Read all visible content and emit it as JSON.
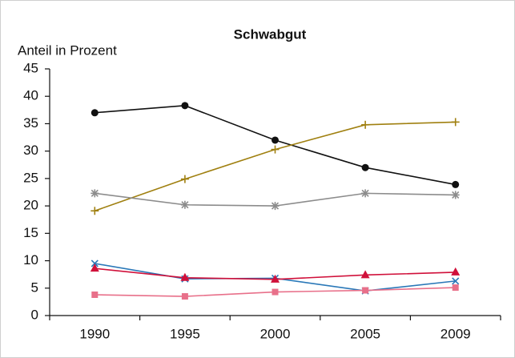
{
  "chart_data": {
    "type": "line",
    "title": "Schwabgut",
    "y_label": "Anteil in Prozent",
    "categories": [
      "1990",
      "1995",
      "2000",
      "2005",
      "2009"
    ],
    "ylim": [
      0,
      45
    ],
    "yticks": [
      0,
      5,
      10,
      15,
      20,
      25,
      30,
      35,
      40,
      45
    ],
    "grid": false,
    "series": [
      {
        "color": "#111111",
        "marker": "circle",
        "values": [
          37,
          38.3,
          32,
          27,
          23.9
        ]
      },
      {
        "color": "#a08010",
        "marker": "plus",
        "values": [
          19.1,
          24.9,
          30.3,
          34.8,
          35.3
        ]
      },
      {
        "color": "#8c8c8c",
        "marker": "asterisk",
        "values": [
          22.3,
          20.2,
          20,
          22.3,
          22
        ]
      },
      {
        "color": "#2a78b8",
        "marker": "x",
        "values": [
          9.5,
          6.7,
          6.8,
          4.5,
          6.3
        ]
      },
      {
        "color": "#d0103a",
        "marker": "triangle",
        "values": [
          8.6,
          6.9,
          6.6,
          7.4,
          7.9
        ]
      },
      {
        "color": "#e8708a",
        "marker": "square",
        "values": [
          3.8,
          3.5,
          4.3,
          4.6,
          5.1
        ]
      }
    ]
  }
}
